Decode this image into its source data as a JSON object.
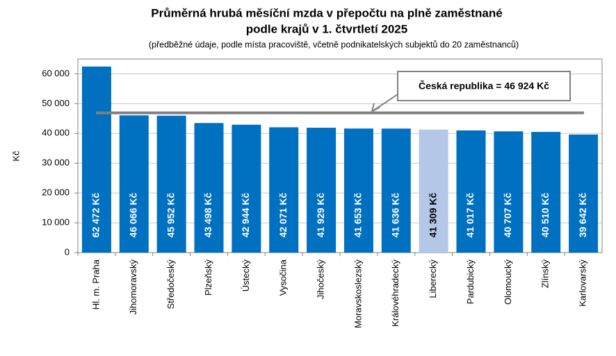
{
  "chart_data": {
    "type": "bar",
    "title": [
      "Průměrná hrubá měsíční mzda v přepočtu na plně zaměstnané",
      "podle krajů v 1. čtvrtletí 2025"
    ],
    "subtitle": "(předběžné údaje, podle místa pracoviště, včetně podnikatelských subjektů  do 20 zaměstnanců)",
    "y_label": "Kč",
    "categories": [
      "Hl. m. Praha",
      "Jihomoravský",
      "Středočeský",
      "Plzeňský",
      "Ústecký",
      "Vysočina",
      "Jihočeský",
      "Moravskoslezský",
      "Královéhradecký",
      "Liberecký",
      "Pardubický",
      "Olomoucký",
      "Zlínský",
      "Karlovarský"
    ],
    "values": [
      62472,
      46066,
      45952,
      43498,
      42944,
      42071,
      41929,
      41653,
      41636,
      41309,
      41017,
      40707,
      40510,
      39642
    ],
    "value_labels": [
      "62 472 Kč",
      "46 066 Kč",
      "45 952 Kč",
      "43 498 Kč",
      "42 944 Kč",
      "42 071 Kč",
      "41 929 Kč",
      "41 653 Kč",
      "41 636 Kč",
      "41 309 Kč",
      "41 017 Kč",
      "40 707 Kč",
      "40 510 Kč",
      "39 642 Kč"
    ],
    "colors": [
      "#0070c0",
      "#0070c0",
      "#0070c0",
      "#0070c0",
      "#0070c0",
      "#0070c0",
      "#0070c0",
      "#0070c0",
      "#0070c0",
      "#b4c7e7",
      "#0070c0",
      "#0070c0",
      "#0070c0",
      "#0070c0"
    ],
    "ylim": [
      0,
      65000
    ],
    "yticks": [
      0,
      {
        "value": 10000,
        "label": "10 000"
      },
      {
        "value": 20000,
        "label": "20 000"
      },
      {
        "value": 30000,
        "label": "30 000"
      },
      {
        "value": 40000,
        "label": "40 000"
      },
      {
        "value": 50000,
        "label": "50 000"
      },
      {
        "value": 60000,
        "label": "60 000"
      }
    ],
    "grid": true,
    "reference": {
      "value": 46924,
      "label": "Česká republika = 46 924 Kč",
      "color": "#808080"
    }
  }
}
